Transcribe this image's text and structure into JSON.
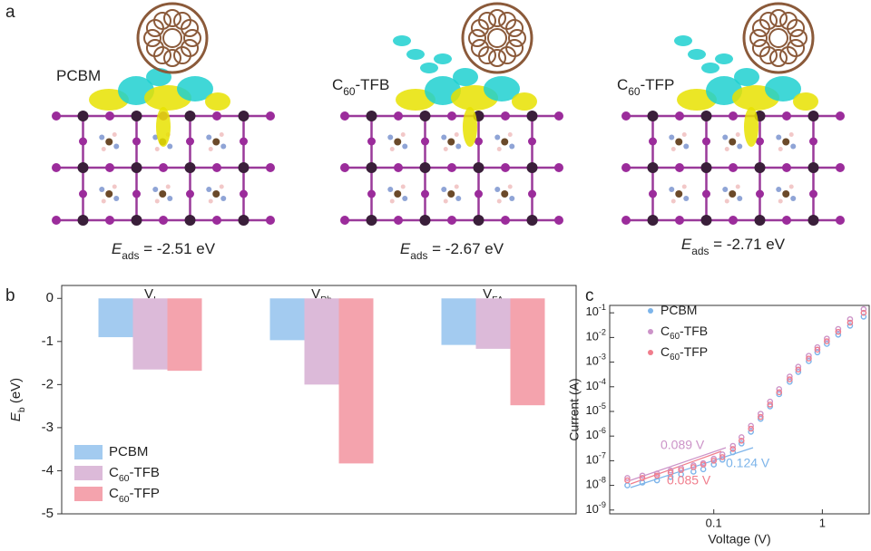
{
  "panel_a": {
    "letter": "a",
    "structures": [
      {
        "label": "PCBM",
        "energy": "Eads = -2.51 eV"
      },
      {
        "label": "C60-TFB",
        "energy": "Eads = -2.67 eV"
      },
      {
        "label": "C60-TFP",
        "energy": "Eads = -2.71 eV"
      }
    ]
  },
  "chart_data": [
    {
      "type": "bar",
      "panel": "b",
      "ylabel": "Eb (eV)",
      "categories": [
        "VI",
        "VPb",
        "VFA"
      ],
      "series": [
        {
          "name": "PCBM",
          "color": "#a3cbf0",
          "values": [
            -0.9,
            -0.97,
            -1.08
          ]
        },
        {
          "name": "C60-TFB",
          "color": "#dcbad9",
          "values": [
            -1.65,
            -2.0,
            -1.17
          ]
        },
        {
          "name": "C60-TFP",
          "color": "#f4a3ad",
          "values": [
            -1.68,
            -3.83,
            -2.48
          ]
        }
      ],
      "ylim": [
        -5,
        0.3
      ],
      "yticks": [
        0,
        -1,
        -2,
        -3,
        -4,
        -5
      ],
      "legend": "lower-left"
    },
    {
      "type": "scatter",
      "panel": "c",
      "xlabel": "Voltage (V)",
      "ylabel": "Current (A)",
      "xscale": "log",
      "yscale": "log",
      "x": [
        0.016,
        0.022,
        0.03,
        0.04,
        0.05,
        0.065,
        0.08,
        0.1,
        0.12,
        0.15,
        0.18,
        0.22,
        0.27,
        0.33,
        0.4,
        0.5,
        0.6,
        0.75,
        0.9,
        1.1,
        1.4,
        1.8,
        2.4
      ],
      "series": [
        {
          "name": "PCBM",
          "color": "#7cb4ea",
          "values": [
            1e-08,
            1.3e-08,
            1.6e-08,
            2.2e-08,
            2.8e-08,
            3.6e-08,
            4.5e-08,
            7e-08,
            1.1e-07,
            2.2e-07,
            5e-07,
            1.5e-06,
            5e-06,
            1.6e-05,
            5e-05,
            0.00016,
            0.0004,
            0.0011,
            0.0025,
            0.0055,
            0.013,
            0.03,
            0.07
          ]
        },
        {
          "name": "C60-TFB",
          "color": "#cc93c8",
          "values": [
            2e-08,
            2.5e-08,
            3e-08,
            4e-08,
            5e-08,
            6.5e-08,
            8e-08,
            1.2e-07,
            1.8e-07,
            4e-07,
            9e-07,
            2.6e-06,
            8e-06,
            2.5e-05,
            8e-05,
            0.00026,
            0.00065,
            0.0018,
            0.004,
            0.009,
            0.022,
            0.055,
            0.14
          ]
        },
        {
          "name": "C60-TFP",
          "color": "#f07d8c",
          "values": [
            1.6e-08,
            2e-08,
            2.5e-08,
            3.3e-08,
            4.2e-08,
            5.5e-08,
            7e-08,
            1e-07,
            1.4e-07,
            3e-07,
            6.5e-07,
            2e-06,
            6e-06,
            1.9e-05,
            6e-05,
            0.0002,
            0.0005,
            0.0014,
            0.0032,
            0.007,
            0.017,
            0.04,
            0.1
          ]
        }
      ],
      "xlim": [
        0.011,
        2.7
      ],
      "xticks": [
        0.1,
        1
      ],
      "ylim": [
        7e-10,
        0.2
      ],
      "yticks": [
        {
          "value": 1e-09,
          "label": "10-9"
        },
        {
          "value": 1e-08,
          "label": "10-8"
        },
        {
          "value": 1e-07,
          "label": "10-7"
        },
        {
          "value": 1e-06,
          "label": "10-6"
        },
        {
          "value": 1e-05,
          "label": "10-5"
        },
        {
          "value": 0.0001,
          "label": "10-4"
        },
        {
          "value": 0.001,
          "label": "10-3"
        },
        {
          "value": 0.01,
          "label": "10-2"
        },
        {
          "value": 0.1,
          "label": "10-1"
        }
      ],
      "legend": "upper-left",
      "annotations": [
        {
          "text": "0.089 V",
          "color": "#cc93c8"
        },
        {
          "text": "0.124 V",
          "color": "#7cb4ea"
        },
        {
          "text": "0.085 V",
          "color": "#f07d8c"
        }
      ]
    }
  ]
}
